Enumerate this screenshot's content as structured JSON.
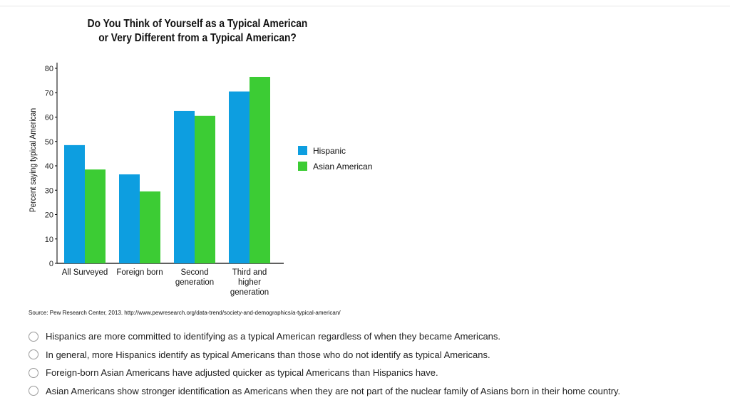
{
  "chart_data": {
    "type": "bar",
    "title_line1": "Do You Think of Yourself as a Typical American",
    "title_line2": "or Very Different from a Typical American?",
    "ylabel": "Percent saying typical American",
    "xlabel": "",
    "ylim": [
      0,
      80
    ],
    "yticks": [
      0,
      10,
      20,
      30,
      40,
      50,
      60,
      70,
      80
    ],
    "categories": [
      [
        "All Surveyed"
      ],
      [
        "Foreign born"
      ],
      [
        "Second",
        "generation"
      ],
      [
        "Third and",
        "higher",
        "generation"
      ]
    ],
    "series": [
      {
        "name": "Hispanic",
        "color": "#0d9ee0",
        "values": [
          48.5,
          36.5,
          62.5,
          70.5
        ]
      },
      {
        "name": "Asian American",
        "color": "#3ccc34",
        "values": [
          38.5,
          29.5,
          60.5,
          76.5
        ]
      }
    ],
    "legend_position": "right",
    "grid": false
  },
  "source": "Source: Pew Research Center, 2013. http://www.pewresearch.org/data-trend/society-and-demographics/a-typical-american/",
  "options": [
    "Hispanics are more committed to identifying as a typical American regardless of when they became Americans.",
    "In general, more Hispanics identify as typical Americans than those who do not identify as typical Americans.",
    "Foreign-born Asian Americans have adjusted quicker as typical Americans than Hispanics have.",
    "Asian Americans show stronger identification as Americans when they are not part of the nuclear family of Asians born in their home country."
  ]
}
